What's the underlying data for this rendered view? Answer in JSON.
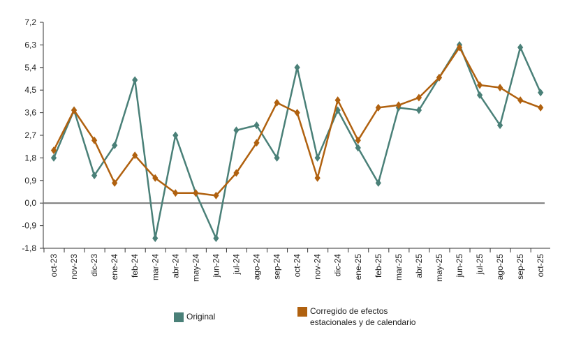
{
  "chart_data": {
    "type": "line",
    "categories": [
      "oct-23",
      "nov-23",
      "dic-23",
      "ene-24",
      "feb-24",
      "mar-24",
      "abr-24",
      "may-24",
      "jun-24",
      "jul-24",
      "ago-24",
      "sep-24",
      "oct-24",
      "nov-24",
      "dic-24",
      "ene-25",
      "feb-25",
      "mar-25",
      "abr-25",
      "may-25",
      "jun-25",
      "jul-25",
      "ago-25",
      "sep-25",
      "oct-25"
    ],
    "series": [
      {
        "name": "Original",
        "color": "#4a8078",
        "values": [
          1.8,
          3.7,
          1.1,
          2.3,
          4.9,
          -1.4,
          2.7,
          0.4,
          -1.4,
          2.9,
          3.1,
          1.8,
          5.4,
          1.8,
          3.7,
          2.2,
          0.8,
          3.8,
          3.7,
          5.0,
          6.3,
          4.3,
          3.1,
          6.2,
          4.4
        ]
      },
      {
        "name": "Corregido de efectos estacionales y de calendario",
        "color": "#b0610f",
        "values": [
          2.1,
          3.7,
          2.5,
          0.8,
          1.9,
          1.0,
          0.4,
          0.4,
          0.3,
          1.2,
          2.4,
          4.0,
          3.6,
          1.0,
          4.1,
          2.5,
          3.8,
          3.9,
          4.2,
          5.0,
          6.2,
          4.7,
          4.6,
          4.1,
          3.8
        ]
      }
    ],
    "yticks": [
      "7,2",
      "6,3",
      "5,4",
      "4,5",
      "3,6",
      "2,7",
      "1,8",
      "0,9",
      "0,0",
      "-0,9",
      "-1,8"
    ],
    "ylim": [
      -1.8,
      7.2
    ],
    "zero_line_color": "#777777",
    "title": "",
    "xlabel": "",
    "ylabel": ""
  },
  "legend": {
    "items": [
      {
        "label": "Original",
        "color": "#4a8078"
      },
      {
        "label_lines": [
          "Corregido de efectos",
          "estacionales y de calendario"
        ],
        "color": "#b0610f"
      }
    ]
  }
}
